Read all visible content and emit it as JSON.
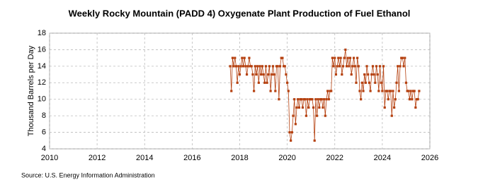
{
  "chart_data": {
    "type": "scatter",
    "title": "Weekly Rocky Mountain (PADD 4) Oxygenate Plant Production of Fuel Ethanol",
    "y_label": "Thousand Barrels per Day",
    "source": "Source: U.S. Energy Information Administration",
    "xlim": [
      2010,
      2026
    ],
    "xticks": [
      2010,
      2012,
      2014,
      2016,
      2018,
      2020,
      2022,
      2024,
      2026
    ],
    "ylim": [
      4,
      18
    ],
    "yticks": [
      4,
      6,
      8,
      10,
      12,
      14,
      16,
      18
    ],
    "grid": true,
    "x": [
      2017.6,
      2017.65,
      2017.7,
      2017.75,
      2017.8,
      2017.85,
      2017.9,
      2017.95,
      2018,
      2018.05,
      2018.1,
      2018.15,
      2018.2,
      2018.25,
      2018.3,
      2018.35,
      2018.4,
      2018.45,
      2018.5,
      2018.55,
      2018.6,
      2018.65,
      2018.7,
      2018.75,
      2018.8,
      2018.85,
      2018.9,
      2018.95,
      2019,
      2019.05,
      2019.1,
      2019.15,
      2019.2,
      2019.25,
      2019.3,
      2019.35,
      2019.4,
      2019.45,
      2019.5,
      2019.55,
      2019.6,
      2019.65,
      2019.7,
      2019.75,
      2019.8,
      2019.85,
      2019.9,
      2019.95,
      2020,
      2020.05,
      2020.1,
      2020.15,
      2020.2,
      2020.25,
      2020.3,
      2020.35,
      2020.4,
      2020.45,
      2020.5,
      2020.55,
      2020.6,
      2020.65,
      2020.7,
      2020.75,
      2020.8,
      2020.85,
      2020.9,
      2020.95,
      2021,
      2021.05,
      2021.1,
      2021.15,
      2021.2,
      2021.25,
      2021.3,
      2021.35,
      2021.4,
      2021.45,
      2021.5,
      2021.55,
      2021.6,
      2021.65,
      2021.7,
      2021.75,
      2021.8,
      2021.85,
      2021.9,
      2021.95,
      2022,
      2022.05,
      2022.1,
      2022.15,
      2022.2,
      2022.25,
      2022.3,
      2022.35,
      2022.4,
      2022.45,
      2022.5,
      2022.55,
      2022.6,
      2022.65,
      2022.7,
      2022.75,
      2022.8,
      2022.85,
      2022.9,
      2022.95,
      2023,
      2023.05,
      2023.1,
      2023.15,
      2023.2,
      2023.25,
      2023.3,
      2023.35,
      2023.4,
      2023.45,
      2023.5,
      2023.55,
      2023.6,
      2023.65,
      2023.7,
      2023.75,
      2023.8,
      2023.85,
      2023.9,
      2023.95,
      2024,
      2024.05,
      2024.1,
      2024.15,
      2024.2,
      2024.25,
      2024.3,
      2024.35,
      2024.4,
      2024.45,
      2024.5,
      2024.55,
      2024.6,
      2024.65,
      2024.7,
      2024.75,
      2024.8,
      2024.85,
      2024.9,
      2024.95,
      2025,
      2025.05,
      2025.1,
      2025.15,
      2025.2,
      2025.25,
      2025.3,
      2025.35,
      2025.4,
      2025.45,
      2025.5,
      2025.55
    ],
    "series": [
      {
        "color": "#b5400f",
        "values": [
          14,
          11,
          15,
          14,
          15,
          14,
          12,
          14,
          13,
          14,
          15,
          14,
          15,
          14,
          13,
          14,
          15,
          14,
          14,
          13,
          11,
          14,
          13,
          14,
          12,
          14,
          13,
          14,
          13,
          12,
          14,
          12,
          13,
          14,
          11,
          13,
          14,
          13,
          11,
          14,
          14,
          10,
          14,
          15,
          15,
          14,
          14,
          13,
          12,
          11,
          6,
          5,
          6,
          8,
          10,
          7,
          9,
          10,
          9,
          10,
          10,
          9,
          10,
          10,
          8,
          10,
          9,
          10,
          10,
          10,
          9,
          5,
          10,
          8,
          10,
          9,
          10,
          10,
          9,
          10,
          8,
          10,
          11,
          10,
          11,
          11,
          15,
          14,
          15,
          13,
          14,
          15,
          14,
          15,
          13,
          14,
          15,
          16,
          14,
          15,
          14,
          15,
          13,
          14,
          15,
          14,
          12,
          15,
          14,
          11,
          10,
          12,
          11,
          13,
          12,
          14,
          13,
          12,
          11,
          13,
          14,
          13,
          12,
          14,
          13,
          11,
          14,
          12,
          11,
          14,
          9,
          11,
          11,
          10,
          11,
          11,
          8,
          11,
          9,
          10,
          12,
          14,
          11,
          14,
          15,
          15,
          14,
          15,
          12,
          11,
          11,
          10,
          11,
          10,
          11,
          11,
          9,
          10,
          10,
          11
        ]
      }
    ]
  }
}
